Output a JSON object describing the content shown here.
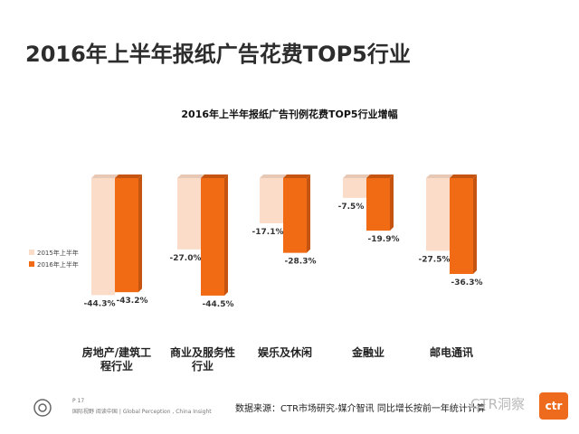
{
  "page": {
    "title": "2016年上半年报纸广告花费TOP5行业"
  },
  "chart_data": {
    "type": "bar",
    "title": "2016年上半年报纸广告刊例花费TOP5行业增幅",
    "categories": [
      [
        "房地产/建筑工",
        "程行业"
      ],
      [
        "商业及服务性",
        "行业"
      ],
      [
        "娱乐及休闲"
      ],
      [
        "金融业"
      ],
      [
        "邮电通讯"
      ]
    ],
    "series": [
      {
        "name": "2015年上半年",
        "values": [
          -44.3,
          -27.0,
          -17.1,
          -7.5,
          -27.5
        ],
        "color": "#fbdcc8"
      },
      {
        "name": "2016年上半年",
        "values": [
          -43.2,
          -44.5,
          -28.3,
          -19.9,
          -36.3
        ],
        "color": "#f06b14"
      }
    ],
    "value_labels": [
      [
        "-44.3%",
        "-27.0%",
        "-17.1%",
        "-7.5%",
        "-27.5%"
      ],
      [
        "-43.2%",
        "-44.5%",
        "-28.3%",
        "-19.9%",
        "-36.3%"
      ]
    ],
    "ylim": [
      -50,
      0
    ],
    "legend": "left",
    "grid": false
  },
  "footer": {
    "page_number": "P 17",
    "slogan": "国际视野   阅读中国  |  Global Perception , China Insight",
    "source": "数据来源：CTR市场研究-媒介智讯  同比增长按前一年统计计算",
    "watermark": "CTR洞察",
    "logo_text": "ctr"
  }
}
